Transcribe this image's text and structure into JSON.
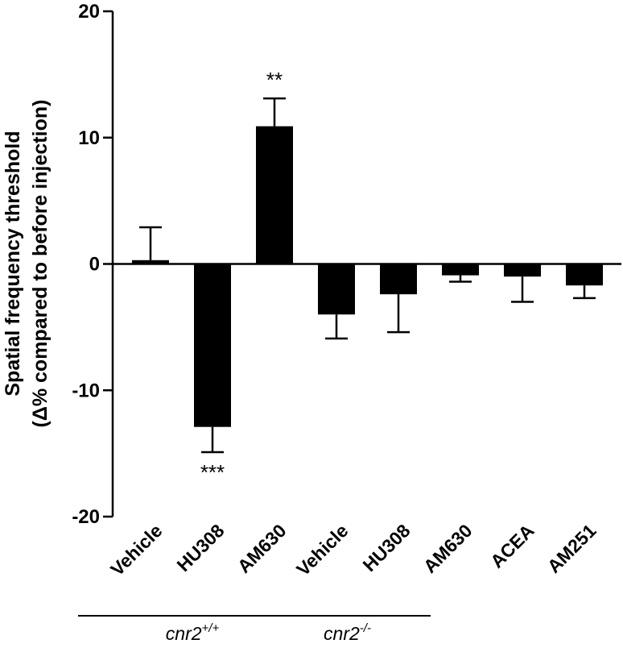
{
  "chart_data": {
    "type": "bar",
    "categories": [
      "Vehicle",
      "HU308",
      "AM630",
      "Vehicle",
      "HU308",
      "AM630",
      "ACEA",
      "AM251"
    ],
    "values": [
      0.3,
      -12.9,
      10.9,
      -4.0,
      -2.4,
      -0.9,
      -1.0,
      -1.7
    ],
    "error_bars": [
      2.6,
      2.0,
      2.2,
      1.9,
      3.0,
      0.5,
      2.0,
      1.0
    ],
    "error_direction": [
      "up",
      "down",
      "up",
      "down",
      "down",
      "down",
      "down",
      "down"
    ],
    "annotations": [
      "",
      "***",
      "**",
      "",
      "",
      "",
      "",
      ""
    ],
    "ylabel_line1": "Spatial frequency threshold",
    "ylabel_line2": "(Δ% compared to before injection)",
    "ylim": [
      -20,
      20
    ],
    "yticks": [
      20,
      10,
      0,
      -10,
      -20
    ],
    "ytick_labels": [
      "20",
      "10",
      "0",
      "-10",
      "-20"
    ],
    "groups": [
      {
        "base": "cnr2",
        "sup": "+/+",
        "start": 0,
        "end": 2
      },
      {
        "base": "cnr2",
        "sup": "-/-",
        "start": 3,
        "end": 4
      }
    ],
    "bar_color": "#000000",
    "grid": false,
    "legend": "none"
  }
}
